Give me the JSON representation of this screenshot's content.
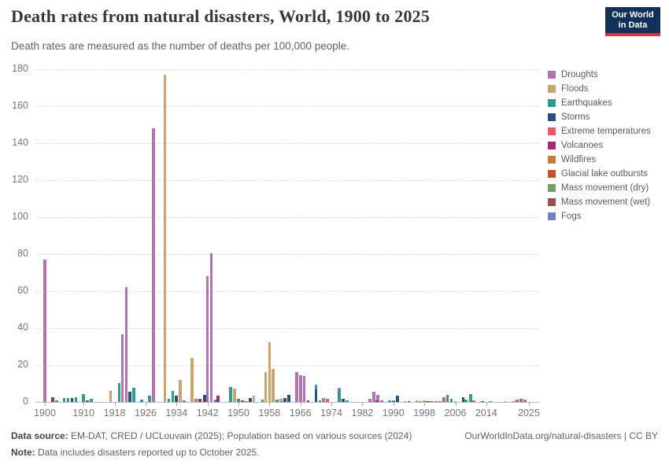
{
  "header": {
    "title": "Death rates from natural disasters, World, 1900 to 2025",
    "subtitle": "Death rates are measured as the number of deaths per 100,000 people.",
    "logo": {
      "line1": "Our World",
      "line2": "in Data"
    }
  },
  "chart_data": {
    "type": "bar",
    "title": "Death rates from natural disasters, World, 1900 to 2025",
    "ylabel": "Deaths per 100,000 people",
    "ylim": [
      0,
      180
    ],
    "yticks": [
      0,
      20,
      40,
      60,
      80,
      100,
      120,
      140,
      160,
      180
    ],
    "x_range": [
      1900,
      2025
    ],
    "xticks": [
      1900,
      1910,
      1918,
      1926,
      1934,
      1942,
      1950,
      1958,
      1966,
      1974,
      1982,
      1990,
      1998,
      2006,
      2014,
      2025
    ],
    "grid": "horizontal-dashed",
    "legend_position": "right",
    "series": [
      {
        "name": "Droughts",
        "color": "#b273b1",
        "points": [
          [
            1900,
            77
          ],
          [
            1917,
            6.1
          ],
          [
            1920,
            36.6
          ],
          [
            1921,
            62
          ],
          [
            1928,
            148
          ],
          [
            1939,
            1.8
          ],
          [
            1942,
            68
          ],
          [
            1943,
            80.5
          ],
          [
            1965,
            16.3
          ],
          [
            1966,
            14.6
          ],
          [
            1967,
            13.9
          ],
          [
            1972,
            2.2
          ],
          [
            1976,
            7.8
          ],
          [
            1984,
            1.8
          ],
          [
            1985,
            5.4
          ],
          [
            1986,
            4
          ]
        ]
      },
      {
        "name": "Floods",
        "color": "#c9a470",
        "points": [
          [
            1917,
            5.1
          ],
          [
            1931,
            177
          ],
          [
            1935,
            12
          ],
          [
            1938,
            23.8
          ],
          [
            1949,
            7.2
          ],
          [
            1951,
            0.7
          ],
          [
            1954,
            3.5
          ],
          [
            1957,
            16
          ],
          [
            1958,
            32.3
          ],
          [
            1959,
            17.7
          ],
          [
            1961,
            1.8
          ],
          [
            1993,
            0.5
          ],
          [
            1996,
            0.8
          ],
          [
            1998,
            0.9
          ],
          [
            2006,
            0.6
          ],
          [
            2019,
            0.4
          ]
        ]
      },
      {
        "name": "Earthquakes",
        "color": "#2a9d90",
        "points": [
          [
            1903,
            0.8
          ],
          [
            1905,
            2
          ],
          [
            1906,
            2.2
          ],
          [
            1908,
            2.4
          ],
          [
            1910,
            4.2
          ],
          [
            1912,
            1.5
          ],
          [
            1920,
            10.3,
            -3.8
          ],
          [
            1923,
            7.7
          ],
          [
            1925,
            1.2
          ],
          [
            1927,
            3.4
          ],
          [
            1932,
            1.5
          ],
          [
            1933,
            5.8
          ],
          [
            1936,
            0.8
          ],
          [
            1944,
            1.3
          ],
          [
            1948,
            8.2
          ],
          [
            1950,
            1.7
          ],
          [
            1957,
            1.4,
            -3.8
          ],
          [
            1960,
            1.2
          ],
          [
            1970,
            9.2
          ],
          [
            1971,
            0.9
          ],
          [
            1976,
            6.8
          ],
          [
            1978,
            0.8
          ],
          [
            1989,
            0.9
          ],
          [
            1990,
            0.9
          ],
          [
            1999,
            0.6
          ],
          [
            2001,
            0.5
          ],
          [
            2004,
            3.9
          ],
          [
            2005,
            1.8
          ],
          [
            2008,
            1.3,
            3.8
          ],
          [
            2010,
            4.3
          ],
          [
            2015,
            0.5
          ],
          [
            2023,
            1.5
          ]
        ]
      },
      {
        "name": "Storms",
        "color": "#2e4e7e",
        "points": [
          [
            1907,
            2
          ],
          [
            1922,
            5.4
          ],
          [
            1934,
            3.3
          ],
          [
            1942,
            4,
            -3.8
          ],
          [
            1953,
            2
          ],
          [
            1962,
            2.3
          ],
          [
            1963,
            4
          ],
          [
            1970,
            6.8
          ],
          [
            1977,
            1.7
          ],
          [
            1991,
            3.5
          ],
          [
            1994,
            0.4
          ],
          [
            1998,
            0.6,
            3.8
          ],
          [
            2008,
            2.6
          ],
          [
            2013,
            0.5
          ]
        ]
      },
      {
        "name": "Extreme temperatures",
        "color": "#e25b63",
        "points": [
          [
            1952,
            0.6
          ],
          [
            1973,
            1.6
          ],
          [
            1987,
            1
          ],
          [
            2002,
            0.6
          ],
          [
            2003,
            2.6
          ],
          [
            2010,
            0.9,
            3.8
          ],
          [
            2021,
            0.4
          ],
          [
            2022,
            1.1
          ],
          [
            2024,
            1.2
          ]
        ]
      },
      {
        "name": "Volcanoes",
        "color": "#a52c71",
        "points": [
          [
            1902,
            2.7
          ],
          [
            1911,
            1
          ],
          [
            1940,
            1.8
          ],
          [
            1944,
            3.2,
            3.8
          ],
          [
            1951,
            0.8
          ],
          [
            1968,
            0.9
          ],
          [
            1985,
            0.9,
            3.8
          ]
        ]
      },
      {
        "name": "Wildfires",
        "color": "#c07f3e",
        "points": [
          [
            1997,
            0.35
          ]
        ]
      },
      {
        "name": "Glacial lake outbursts",
        "color": "#c6512e",
        "points": [
          [
            1941,
            0.4
          ]
        ]
      },
      {
        "name": "Mass movement (dry)",
        "color": "#76a06a",
        "points": [
          [
            1962,
            0.3,
            -3.8
          ]
        ]
      },
      {
        "name": "Mass movement (wet)",
        "color": "#9e4e50",
        "points": [
          [
            1999,
            0.55,
            3.8
          ]
        ]
      },
      {
        "name": "Fogs",
        "color": "#7086b8",
        "points": [
          [
            1952,
            0.45,
            -3.8
          ]
        ]
      }
    ]
  },
  "footer": {
    "source_label": "Data source:",
    "source_text": " EM-DAT, CRED / UCLouvain (2025); Population based on various sources (2024)",
    "link_text": "OurWorldInData.org/natural-disasters | CC BY",
    "note_label": "Note:",
    "note_text": " Data includes disasters reported up to October 2025."
  }
}
